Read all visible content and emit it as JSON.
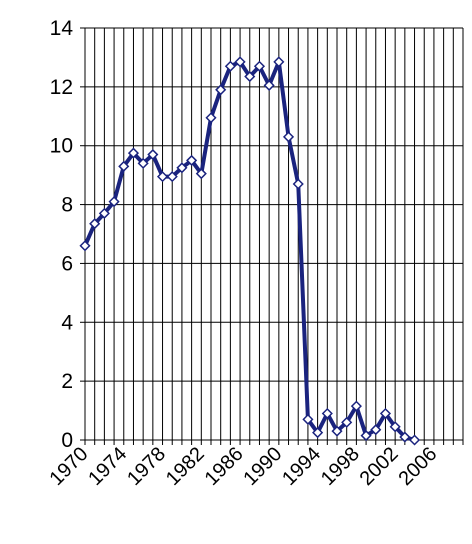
{
  "chart_data": {
    "type": "line",
    "title": "",
    "xlabel": "",
    "ylabel": "",
    "xlim": [
      1970,
      2009
    ],
    "ylim": [
      0,
      14
    ],
    "y_ticks": [
      "0",
      "2",
      "4",
      "6",
      "8",
      "10",
      "12",
      "14"
    ],
    "x_tick_labels": [
      "1970",
      "1974",
      "1978",
      "1982",
      "1986",
      "1990",
      "1994",
      "1998",
      "2002",
      "2006"
    ],
    "grid": true,
    "legend": "none",
    "series": [
      {
        "color": "#1a237e",
        "marker": "diamond",
        "x": [
          1970,
          1971,
          1972,
          1973,
          1974,
          1975,
          1976,
          1977,
          1978,
          1979,
          1980,
          1981,
          1982,
          1983,
          1984,
          1985,
          1986,
          1987,
          1988,
          1989,
          1990,
          1991,
          1992,
          1993,
          1994,
          1995,
          1996,
          1997,
          1998,
          1999,
          2000,
          2001,
          2002,
          2003,
          2004
        ],
        "values": [
          6.6,
          7.35,
          7.7,
          8.1,
          9.3,
          9.75,
          9.4,
          9.7,
          8.95,
          8.95,
          9.25,
          9.5,
          9.05,
          10.95,
          11.9,
          12.7,
          12.85,
          12.35,
          12.7,
          12.05,
          12.85,
          10.3,
          8.7,
          0.7,
          0.25,
          0.9,
          0.3,
          0.6,
          1.15,
          0.15,
          0.35,
          0.9,
          0.45,
          0.1,
          0.0
        ]
      }
    ]
  }
}
